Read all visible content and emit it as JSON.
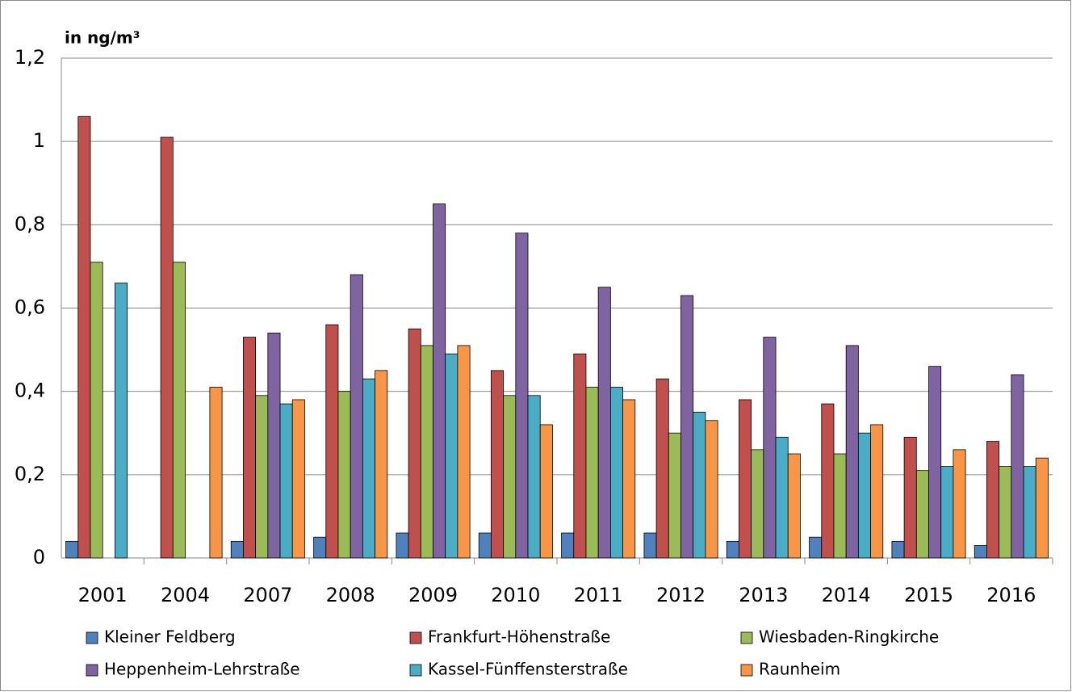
{
  "chart_data": {
    "type": "bar",
    "y_unit_label": "in ng/m³",
    "categories": [
      "2001",
      "2004",
      "2007",
      "2008",
      "2009",
      "2010",
      "2011",
      "2012",
      "2013",
      "2014",
      "2015",
      "2016"
    ],
    "series": [
      {
        "name": "Kleiner Feldberg",
        "color": "#4f81bd",
        "values": [
          0.04,
          null,
          0.04,
          0.05,
          0.06,
          0.06,
          0.06,
          0.06,
          0.04,
          0.05,
          0.04,
          0.03
        ]
      },
      {
        "name": "Frankfurt-Höhenstraße",
        "color": "#c0504d",
        "values": [
          1.06,
          1.01,
          0.53,
          0.56,
          0.55,
          0.45,
          0.49,
          0.43,
          0.38,
          0.37,
          0.29,
          0.28
        ]
      },
      {
        "name": "Wiesbaden-Ringkirche",
        "color": "#9bbb59",
        "values": [
          0.71,
          0.71,
          0.39,
          0.4,
          0.51,
          0.39,
          0.41,
          0.3,
          0.26,
          0.25,
          0.21,
          0.22
        ]
      },
      {
        "name": "Heppenheim-Lehrstraße",
        "color": "#8064a2",
        "values": [
          null,
          null,
          0.54,
          0.68,
          0.85,
          0.78,
          0.65,
          0.63,
          0.53,
          0.51,
          0.46,
          0.44
        ]
      },
      {
        "name": "Kassel-Fünffensterstraße",
        "color": "#4bacc6",
        "values": [
          0.66,
          null,
          0.37,
          0.43,
          0.49,
          0.39,
          0.41,
          0.35,
          0.29,
          0.3,
          0.22,
          0.22
        ]
      },
      {
        "name": "Raunheim",
        "color": "#f79646",
        "values": [
          null,
          0.41,
          0.38,
          0.45,
          0.51,
          0.32,
          0.38,
          0.33,
          0.25,
          0.32,
          0.26,
          0.24
        ]
      }
    ],
    "ylim": [
      0,
      1.2
    ],
    "yticks": [
      0,
      {
        "value": 0.2,
        "label": "0,2"
      },
      {
        "value": 0.4,
        "label": "0,4"
      },
      {
        "value": 0.6,
        "label": "0,6"
      },
      {
        "value": 0.8,
        "label": "0,8"
      },
      1,
      {
        "value": 1.2,
        "label": "1,2"
      }
    ],
    "grid": true
  }
}
